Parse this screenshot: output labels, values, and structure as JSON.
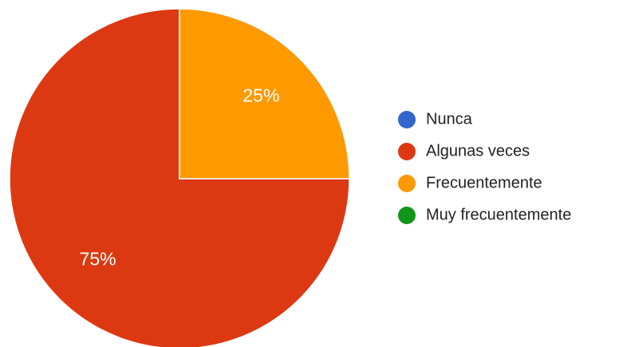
{
  "chart_data": {
    "type": "pie",
    "categories": [
      "Nunca",
      "Algunas veces",
      "Frecuentemente",
      "Muy frecuentemente"
    ],
    "values": [
      0,
      75,
      25,
      0
    ],
    "value_labels": [
      null,
      "75%",
      "25%",
      null
    ],
    "colors": [
      "#3366cc",
      "#dc3912",
      "#ff9900",
      "#109618"
    ],
    "legend": "right"
  }
}
